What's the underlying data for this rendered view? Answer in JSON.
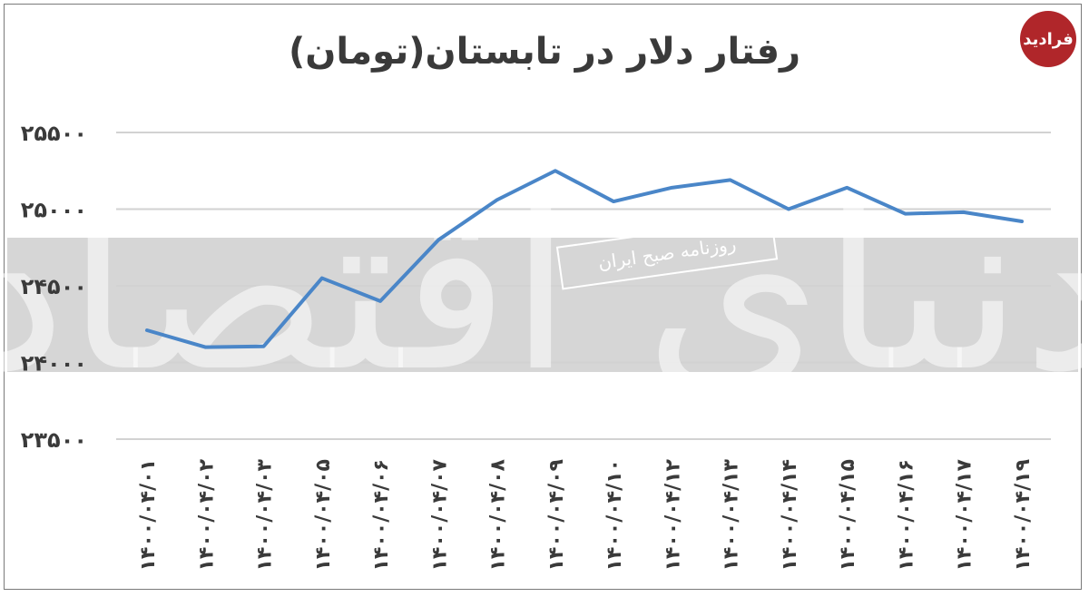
{
  "title": "رفتار دلار در تابستان(تومان)",
  "logo": {
    "text": "فرادید"
  },
  "watermark": {
    "tag": "روزنامه صبح ایران",
    "big": "دنیای اقتصاد"
  },
  "colors": {
    "line": "#4a86c8",
    "grid": "#d2d2d2",
    "band": "#d6d6d6"
  },
  "chart_data": {
    "type": "line",
    "title": "رفتار دلار در تابستان(تومان)",
    "xlabel": "",
    "ylabel": "",
    "ylim": [
      23500,
      25500
    ],
    "yticks": [
      23500,
      24000,
      24500,
      25000,
      25500
    ],
    "ytick_labels": [
      "۲۳۵۰۰",
      "۲۴۰۰۰",
      "۲۴۵۰۰",
      "۲۵۰۰۰",
      "۲۵۵۰۰"
    ],
    "grid": true,
    "categories": [
      "۱۴۰۰/۰۴/۰۱",
      "۱۴۰۰/۰۴/۰۲",
      "۱۴۰۰/۰۴/۰۳",
      "۱۴۰۰/۰۴/۰۵",
      "۱۴۰۰/۰۴/۰۶",
      "۱۴۰۰/۰۴/۰۷",
      "۱۴۰۰/۰۴/۰۸",
      "۱۴۰۰/۰۴/۰۹",
      "۱۴۰۰/۰۴/۱۰",
      "۱۴۰۰/۰۴/۱۲",
      "۱۴۰۰/۰۴/۱۳",
      "۱۴۰۰/۰۴/۱۴",
      "۱۴۰۰/۰۴/۱۵",
      "۱۴۰۰/۰۴/۱۶",
      "۱۴۰۰/۰۴/۱۷",
      "۱۴۰۰/۰۴/۱۹"
    ],
    "values": [
      24210,
      24100,
      24105,
      24550,
      24400,
      24800,
      25060,
      25250,
      25050,
      25140,
      25190,
      25000,
      25140,
      24970,
      24980,
      24920
    ]
  }
}
